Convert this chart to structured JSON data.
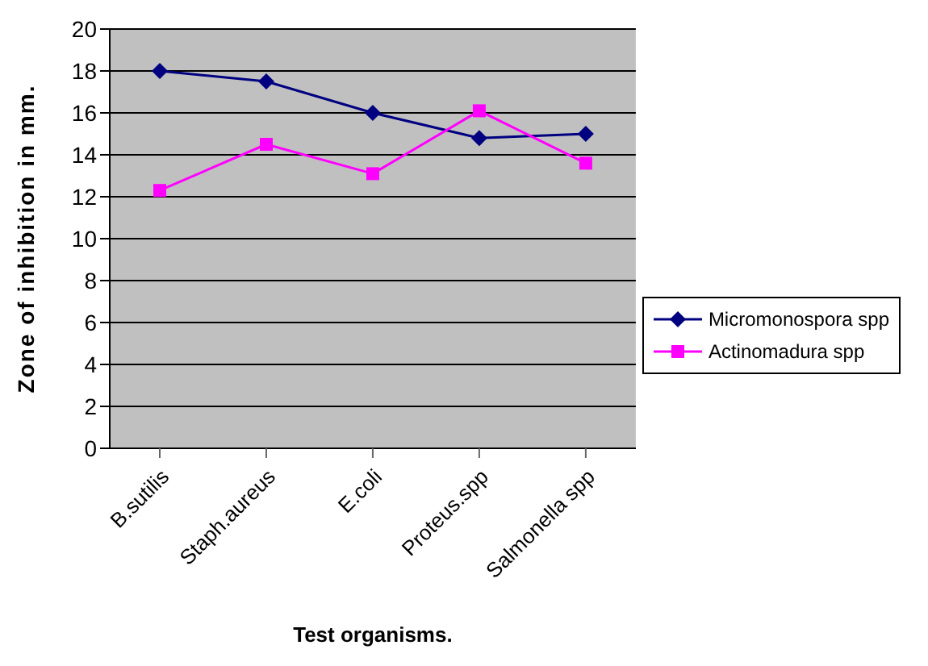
{
  "chart_data": {
    "type": "line",
    "xlabel": "Test organisms.",
    "ylabel": "Zone of inhibition in mm.",
    "categories": [
      "B.sutilis",
      "Staph.aureus",
      "E.coli",
      "Proteus.spp",
      "Salmonella spp"
    ],
    "series": [
      {
        "name": "Micromonospora spp",
        "color": "#000080",
        "values": [
          18,
          17.5,
          16,
          14.8,
          15
        ],
        "marker": "diamond"
      },
      {
        "name": "Actinomadura spp",
        "color": "#ff00ff",
        "values": [
          12.3,
          14.5,
          13.1,
          16.1,
          13.6
        ],
        "marker": "square"
      }
    ],
    "ylim": [
      0,
      20
    ],
    "yticks": [
      0,
      2,
      4,
      6,
      8,
      10,
      12,
      14,
      16,
      18,
      20
    ],
    "grid": "y",
    "legend": "right"
  }
}
